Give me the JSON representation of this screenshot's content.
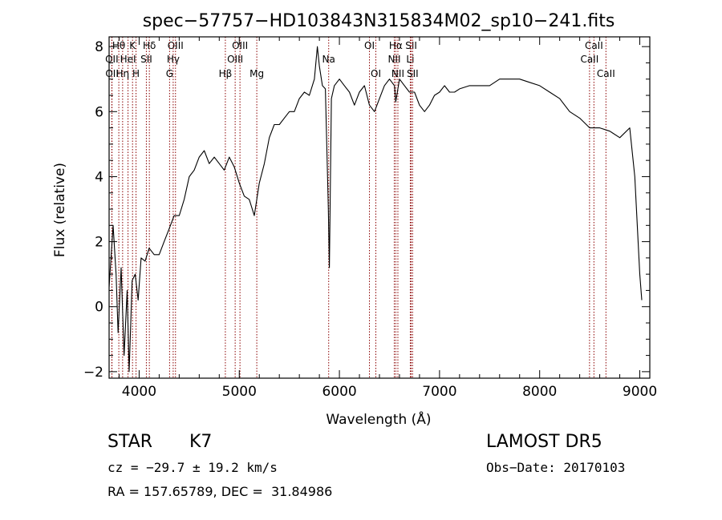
{
  "chart_data": {
    "type": "line",
    "title": "spec−57757−HD103843N315834M02_sp10−241.fits",
    "xlabel": "Wavelength (Å)",
    "ylabel": "Flux (relative)",
    "xlim": [
      3700,
      9100
    ],
    "ylim": [
      -2.2,
      8.3
    ],
    "x_ticks": [
      4000,
      5000,
      6000,
      7000,
      8000,
      9000
    ],
    "y_ticks": [
      -2,
      0,
      2,
      4,
      6,
      8
    ],
    "line_color": "#000000",
    "marker_color": "#8b0000",
    "series": [
      {
        "x": [
          3700,
          3740,
          3770,
          3790,
          3820,
          3850,
          3880,
          3900,
          3930,
          3960,
          3990,
          4020,
          4060,
          4100,
          4150,
          4200,
          4250,
          4300,
          4350,
          4400,
          4450,
          4500,
          4550,
          4600,
          4650,
          4700,
          4750,
          4800,
          4850,
          4900,
          4950,
          5000,
          5050,
          5100,
          5150,
          5200,
          5250,
          5300,
          5350,
          5400,
          5450,
          5500,
          5550,
          5600,
          5650,
          5700,
          5750,
          5780,
          5800,
          5830,
          5860,
          5890,
          5900,
          5920,
          5950,
          6000,
          6050,
          6100,
          6150,
          6200,
          6250,
          6300,
          6350,
          6400,
          6450,
          6500,
          6550,
          6563,
          6600,
          6650,
          6700,
          6750,
          6800,
          6850,
          6900,
          6950,
          7000,
          7050,
          7100,
          7150,
          7200,
          7300,
          7400,
          7500,
          7600,
          7700,
          7800,
          7900,
          8000,
          8100,
          8200,
          8300,
          8400,
          8500,
          8600,
          8700,
          8800,
          8900,
          8950,
          9000,
          9020
        ],
        "y": [
          0.6,
          2.5,
          1.0,
          -0.8,
          1.2,
          -1.5,
          0.5,
          -2.0,
          0.8,
          1.0,
          0.2,
          1.5,
          1.4,
          1.8,
          1.6,
          1.6,
          2.0,
          2.4,
          2.8,
          2.8,
          3.3,
          4.0,
          4.2,
          4.6,
          4.8,
          4.4,
          4.6,
          4.4,
          4.2,
          4.6,
          4.3,
          3.8,
          3.4,
          3.3,
          2.8,
          3.8,
          4.4,
          5.2,
          5.6,
          5.6,
          5.8,
          6.0,
          6.0,
          6.4,
          6.6,
          6.5,
          7.0,
          8.0,
          7.4,
          6.8,
          6.7,
          3.0,
          1.2,
          6.4,
          6.8,
          7.0,
          6.8,
          6.6,
          6.2,
          6.6,
          6.8,
          6.2,
          6.0,
          6.4,
          6.8,
          7.0,
          6.8,
          6.3,
          7.0,
          6.8,
          6.6,
          6.6,
          6.2,
          6.0,
          6.2,
          6.5,
          6.6,
          6.8,
          6.6,
          6.6,
          6.7,
          6.8,
          6.8,
          6.8,
          7.0,
          7.0,
          7.0,
          6.9,
          6.8,
          6.6,
          6.4,
          6.0,
          5.8,
          5.5,
          5.5,
          5.4,
          5.2,
          5.5,
          4.0,
          1.0,
          0.2
        ]
      }
    ],
    "line_markers": [
      {
        "label": "Hθ",
        "x": 3797,
        "row": 0
      },
      {
        "label": "OII",
        "x": 3727,
        "row": 1
      },
      {
        "label": "OII",
        "x": 3729,
        "row": 2
      },
      {
        "label": "K",
        "x": 3934,
        "row": 0
      },
      {
        "label": "HeI",
        "x": 3889,
        "row": 1
      },
      {
        "label": "Hη",
        "x": 3835,
        "row": 2
      },
      {
        "label": "H",
        "x": 3969,
        "row": 2
      },
      {
        "label": "Hδ",
        "x": 4102,
        "row": 0
      },
      {
        "label": "SII",
        "x": 4072,
        "row": 1
      },
      {
        "label": "OIII",
        "x": 4363,
        "row": 0
      },
      {
        "label": "Hγ",
        "x": 4340,
        "row": 1
      },
      {
        "label": "G",
        "x": 4304,
        "row": 2
      },
      {
        "label": "OIII",
        "x": 5007,
        "row": 0
      },
      {
        "label": "OIII",
        "x": 4959,
        "row": 1
      },
      {
        "label": "Hβ",
        "x": 4861,
        "row": 2
      },
      {
        "label": "Mg",
        "x": 5175,
        "row": 2
      },
      {
        "label": "Na",
        "x": 5893,
        "row": 1
      },
      {
        "label": "OI",
        "x": 6300,
        "row": 0
      },
      {
        "label": "OI",
        "x": 6364,
        "row": 2
      },
      {
        "label": "Hα",
        "x": 6563,
        "row": 0
      },
      {
        "label": "NII",
        "x": 6548,
        "row": 1
      },
      {
        "label": "NII",
        "x": 6584,
        "row": 2
      },
      {
        "label": "SII",
        "x": 6717,
        "row": 0
      },
      {
        "label": "Li",
        "x": 6708,
        "row": 1
      },
      {
        "label": "SII",
        "x": 6731,
        "row": 2
      },
      {
        "label": "CaII",
        "x": 8542,
        "row": 0
      },
      {
        "label": "CaII",
        "x": 8498,
        "row": 1
      },
      {
        "label": "CaII",
        "x": 8662,
        "row": 2
      }
    ]
  },
  "info": {
    "class_label": "STAR",
    "subclass": "K7",
    "survey": "LAMOST DR5",
    "cz_line": "cz = −29.7 ± 19.2 km/s",
    "obs_date": "Obs−Date: 20170103",
    "radec": "RA = 157.65789, DEC =  31.84986"
  }
}
